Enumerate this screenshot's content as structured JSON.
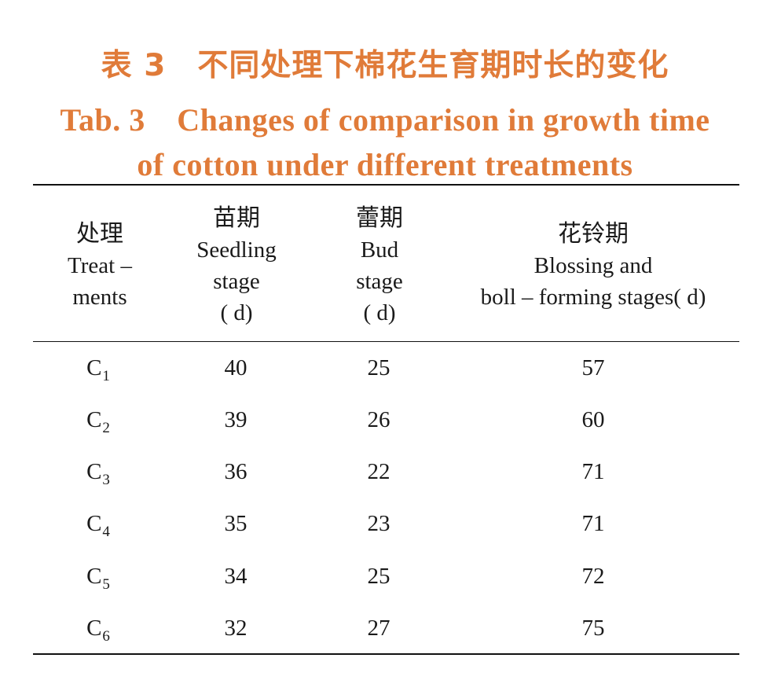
{
  "title": {
    "cn": "表 3　不同处理下棉花生育期时长的变化",
    "en_line1": "Tab. 3　Changes of comparison in growth time",
    "en_line2": "of cotton under different treatments"
  },
  "columns": [
    {
      "cn": "处理",
      "en_lines": [
        "Treat –",
        "ments"
      ]
    },
    {
      "cn": "苗期",
      "en_lines": [
        "Seedling",
        "stage",
        "( d)"
      ]
    },
    {
      "cn": "蕾期",
      "en_lines": [
        "Bud",
        "stage",
        "( d)"
      ]
    },
    {
      "cn": "花铃期",
      "en_lines": [
        "Blossing and",
        "boll – forming stages( d)"
      ]
    }
  ],
  "rows": [
    {
      "treat_base": "C",
      "treat_sub": "1",
      "seedling": "40",
      "bud": "25",
      "blossing": "57"
    },
    {
      "treat_base": "C",
      "treat_sub": "2",
      "seedling": "39",
      "bud": "26",
      "blossing": "60"
    },
    {
      "treat_base": "C",
      "treat_sub": "3",
      "seedling": "36",
      "bud": "22",
      "blossing": "71"
    },
    {
      "treat_base": "C",
      "treat_sub": "4",
      "seedling": "35",
      "bud": "23",
      "blossing": "71"
    },
    {
      "treat_base": "C",
      "treat_sub": "5",
      "seedling": "34",
      "bud": "25",
      "blossing": "72"
    },
    {
      "treat_base": "C",
      "treat_sub": "6",
      "seedling": "32",
      "bud": "27",
      "blossing": "75"
    }
  ],
  "colors": {
    "title": "#e07b39",
    "text": "#1a1a1a",
    "rule": "#111111"
  }
}
